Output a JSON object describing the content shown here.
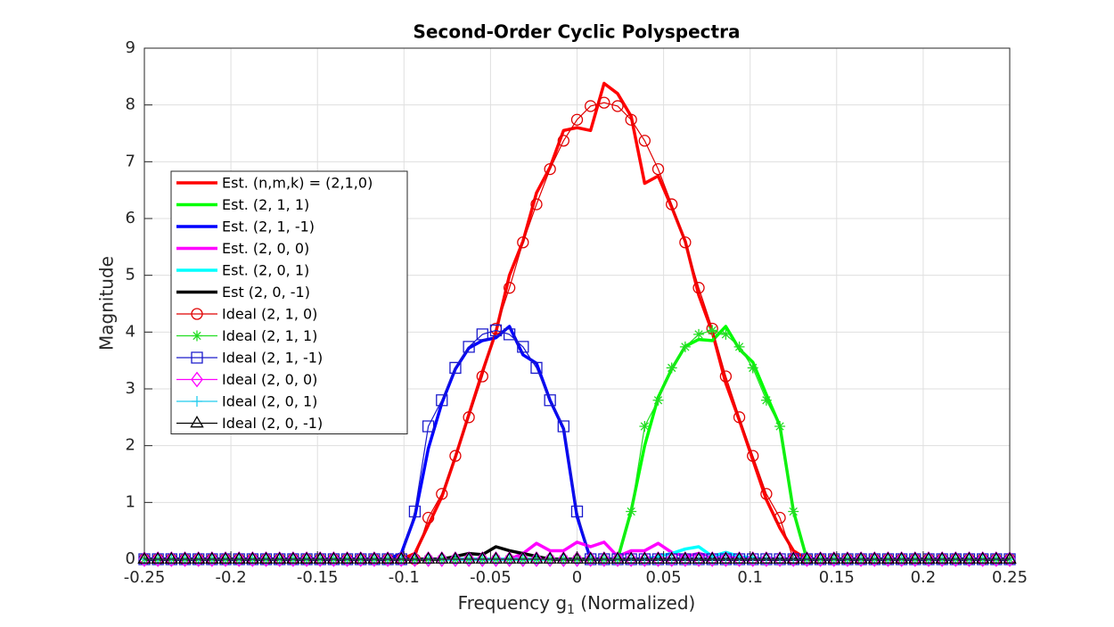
{
  "chart_data": {
    "type": "line",
    "title": "Second-Order Cyclic Polyspectra",
    "xlabel": [
      "Frequency g",
      "1",
      " (Normalized)"
    ],
    "ylabel": "Magnitude",
    "xlim": [
      -0.25,
      0.25
    ],
    "ylim": [
      0,
      9
    ],
    "xticks": [
      -0.25,
      -0.2,
      -0.15,
      -0.1,
      -0.05,
      0,
      0.05,
      0.1,
      0.15,
      0.2,
      0.25
    ],
    "yticks": [
      0,
      1,
      2,
      3,
      4,
      5,
      6,
      7,
      8,
      9
    ],
    "grid": true,
    "legend": "west",
    "x": [
      -0.25,
      -0.2421875,
      -0.234375,
      -0.2265625,
      -0.21875,
      -0.2109375,
      -0.203125,
      -0.1953125,
      -0.1875,
      -0.1796875,
      -0.171875,
      -0.1640625,
      -0.15625,
      -0.1484375,
      -0.140625,
      -0.1328125,
      -0.125,
      -0.1171875,
      -0.109375,
      -0.1015625,
      -0.09375,
      -0.0859375,
      -0.078125,
      -0.0703125,
      -0.0625,
      -0.0546875,
      -0.046875,
      -0.0390625,
      -0.03125,
      -0.0234375,
      -0.015625,
      -0.0078125,
      0,
      0.0078125,
      0.015625,
      0.0234375,
      0.03125,
      0.0390625,
      0.046875,
      0.0546875,
      0.0625,
      0.0703125,
      0.078125,
      0.0859375,
      0.09375,
      0.1015625,
      0.109375,
      0.1171875,
      0.125,
      0.1328125,
      0.140625,
      0.1484375,
      0.15625,
      0.1640625,
      0.171875,
      0.1796875,
      0.1875,
      0.1953125,
      0.203125,
      0.2109375,
      0.21875,
      0.2265625,
      0.234375,
      0.2421875,
      0.25
    ],
    "series": [
      {
        "name": "Est. (n,m,k) = (2,1,0)",
        "color": "#ff0000",
        "width": 3.5,
        "marker": "none",
        "values": [
          0,
          0,
          0,
          0,
          0,
          0,
          0,
          0,
          0,
          0,
          0,
          0,
          0,
          0,
          0,
          0,
          0,
          0,
          0,
          0,
          0.1,
          0.6,
          1.1,
          1.8,
          2.55,
          3.3,
          4.0,
          5.0,
          5.6,
          6.45,
          6.9,
          7.55,
          7.6,
          7.55,
          8.38,
          8.2,
          7.8,
          6.62,
          6.75,
          6.2,
          5.6,
          4.65,
          4.0,
          3.1,
          2.45,
          1.75,
          1.05,
          0.55,
          0.15,
          0,
          0,
          0,
          0,
          0,
          0,
          0,
          0,
          0,
          0,
          0,
          0,
          0,
          0,
          0,
          0
        ]
      },
      {
        "name": "Est. (2, 1, 1)",
        "color": "#00ff00",
        "width": 3.5,
        "marker": "none",
        "values": [
          0,
          0,
          0,
          0,
          0,
          0,
          0,
          0,
          0,
          0,
          0,
          0,
          0,
          0,
          0,
          0,
          0,
          0,
          0,
          0,
          0,
          0,
          0,
          0,
          0,
          0,
          0,
          0,
          0,
          0,
          0,
          0,
          0,
          0,
          0,
          0,
          0.85,
          2.0,
          2.85,
          3.35,
          3.75,
          3.87,
          3.85,
          4.1,
          3.7,
          3.47,
          2.9,
          2.35,
          0.85,
          0,
          0,
          0,
          0,
          0,
          0,
          0,
          0,
          0,
          0,
          0,
          0,
          0,
          0,
          0,
          0
        ]
      },
      {
        "name": "Est. (2, 1, -1)",
        "color": "#0000ff",
        "width": 3.5,
        "marker": "none",
        "values": [
          0,
          0,
          0,
          0,
          0,
          0,
          0,
          0,
          0,
          0,
          0,
          0,
          0,
          0,
          0,
          0,
          0,
          0,
          0,
          0.1,
          0.75,
          1.95,
          2.75,
          3.35,
          3.72,
          3.85,
          3.9,
          4.1,
          3.6,
          3.45,
          2.8,
          2.3,
          0.75,
          0,
          0,
          0,
          0,
          0,
          0,
          0,
          0,
          0,
          0,
          0,
          0,
          0,
          0,
          0,
          0,
          0,
          0,
          0,
          0,
          0,
          0,
          0,
          0,
          0,
          0,
          0,
          0,
          0,
          0,
          0,
          0
        ]
      },
      {
        "name": "Est. (2, 0, 0)",
        "color": "#ff00ff",
        "width": 3.5,
        "marker": "none",
        "values": [
          0,
          0,
          0,
          0,
          0,
          0,
          0,
          0,
          0,
          0,
          0,
          0,
          0,
          0,
          0,
          0,
          0,
          0,
          0,
          0,
          0,
          0,
          0,
          0,
          0,
          0,
          0,
          0,
          0.1,
          0.28,
          0.15,
          0.15,
          0.3,
          0.22,
          0.3,
          0.05,
          0.15,
          0.15,
          0.28,
          0.12,
          0.05,
          0.1,
          0.05,
          0.08,
          0.02,
          0,
          0,
          0,
          0,
          0,
          0,
          0,
          0,
          0,
          0,
          0,
          0,
          0,
          0,
          0,
          0,
          0,
          0,
          0,
          0
        ]
      },
      {
        "name": "Est. (2, 0, 1)",
        "color": "#00ffff",
        "width": 3.5,
        "marker": "none",
        "values": [
          0,
          0,
          0,
          0,
          0,
          0,
          0,
          0,
          0,
          0,
          0,
          0,
          0,
          0,
          0,
          0,
          0,
          0,
          0,
          0,
          0,
          0,
          0,
          0,
          0,
          0,
          0,
          0,
          0,
          0,
          0,
          0,
          0,
          0,
          0,
          0,
          0,
          0,
          0.05,
          0.1,
          0.18,
          0.22,
          0.05,
          0.12,
          0.05,
          0.02,
          0,
          0,
          0,
          0,
          0,
          0,
          0,
          0,
          0,
          0,
          0,
          0,
          0,
          0,
          0,
          0,
          0,
          0,
          0
        ]
      },
      {
        "name": "Est (2, 0, -1)",
        "color": "#000000",
        "width": 3.5,
        "marker": "none",
        "values": [
          0,
          0,
          0,
          0,
          0,
          0,
          0,
          0,
          0,
          0,
          0,
          0,
          0,
          0,
          0,
          0,
          0,
          0,
          0,
          0,
          0,
          0,
          0,
          0.05,
          0.1,
          0.08,
          0.22,
          0.15,
          0.1,
          0.05,
          0,
          0,
          0,
          0,
          0,
          0,
          0,
          0,
          0,
          0,
          0,
          0,
          0,
          0,
          0,
          0,
          0,
          0,
          0,
          0,
          0,
          0,
          0,
          0,
          0,
          0,
          0,
          0,
          0,
          0,
          0,
          0,
          0,
          0,
          0
        ]
      },
      {
        "name": "Ideal (2, 1, 0)",
        "color": "#e00000",
        "width": 1.2,
        "marker": "circle",
        "values": [
          0,
          0,
          0,
          0,
          0,
          0,
          0,
          0,
          0,
          0,
          0,
          0,
          0,
          0,
          0,
          0,
          0,
          0,
          0,
          0,
          0,
          0.73,
          1.15,
          1.82,
          2.5,
          3.22,
          4.06,
          4.78,
          5.58,
          6.25,
          6.87,
          7.37,
          7.74,
          7.98,
          8.04,
          7.98,
          7.74,
          7.37,
          6.87,
          6.25,
          5.58,
          4.78,
          4.06,
          3.22,
          2.5,
          1.82,
          1.15,
          0.73,
          0,
          0,
          0,
          0,
          0,
          0,
          0,
          0,
          0,
          0,
          0,
          0,
          0,
          0,
          0,
          0,
          0
        ]
      },
      {
        "name": "Ideal (2, 1, 1)",
        "color": "#22dd22",
        "width": 1.2,
        "marker": "asterisk",
        "values": [
          0,
          0,
          0,
          0,
          0,
          0,
          0,
          0,
          0,
          0,
          0,
          0,
          0,
          0,
          0,
          0,
          0,
          0,
          0,
          0,
          0,
          0,
          0,
          0,
          0,
          0,
          0,
          0,
          0,
          0,
          0,
          0,
          0,
          0,
          0,
          0,
          0.84,
          2.34,
          2.8,
          3.37,
          3.74,
          3.96,
          4.03,
          3.96,
          3.74,
          3.37,
          2.8,
          2.34,
          0.84,
          0,
          0,
          0,
          0,
          0,
          0,
          0,
          0,
          0,
          0,
          0,
          0,
          0,
          0,
          0,
          0
        ]
      },
      {
        "name": "Ideal (2, 1, -1)",
        "color": "#1a1acc",
        "width": 1.2,
        "marker": "square",
        "values": [
          0,
          0,
          0,
          0,
          0,
          0,
          0,
          0,
          0,
          0,
          0,
          0,
          0,
          0,
          0,
          0,
          0,
          0,
          0,
          0,
          0.84,
          2.34,
          2.8,
          3.37,
          3.74,
          3.96,
          4.03,
          3.96,
          3.74,
          3.37,
          2.8,
          2.34,
          0.84,
          0,
          0,
          0,
          0,
          0,
          0,
          0,
          0,
          0,
          0,
          0,
          0,
          0,
          0,
          0,
          0,
          0,
          0,
          0,
          0,
          0,
          0,
          0,
          0,
          0,
          0,
          0,
          0,
          0,
          0,
          0,
          0
        ]
      },
      {
        "name": "Ideal (2, 0, 0)",
        "color": "#ff00ff",
        "width": 1.2,
        "marker": "diamond",
        "values": [
          0,
          0,
          0,
          0,
          0,
          0,
          0,
          0,
          0,
          0,
          0,
          0,
          0,
          0,
          0,
          0,
          0,
          0,
          0,
          0,
          0,
          0,
          0,
          0,
          0,
          0,
          0,
          0,
          0,
          0,
          0,
          0,
          0,
          0,
          0,
          0,
          0,
          0,
          0,
          0,
          0,
          0,
          0,
          0,
          0,
          0,
          0,
          0,
          0,
          0,
          0,
          0,
          0,
          0,
          0,
          0,
          0,
          0,
          0,
          0,
          0,
          0,
          0,
          0,
          0
        ]
      },
      {
        "name": "Ideal (2, 0, 1)",
        "color": "#22ccee",
        "width": 1.2,
        "marker": "plus",
        "values": [
          0,
          0,
          0,
          0,
          0,
          0,
          0,
          0,
          0,
          0,
          0,
          0,
          0,
          0,
          0,
          0,
          0,
          0,
          0,
          0,
          0,
          0,
          0,
          0,
          0,
          0,
          0,
          0,
          0,
          0,
          0,
          0,
          0,
          0,
          0,
          0,
          0,
          0,
          0,
          0,
          0,
          0,
          0,
          0,
          0,
          0,
          0,
          0,
          0,
          0,
          0,
          0,
          0,
          0,
          0,
          0,
          0,
          0,
          0,
          0,
          0,
          0,
          0,
          0,
          0
        ]
      },
      {
        "name": "Ideal (2, 0, -1)",
        "color": "#000000",
        "width": 1.2,
        "marker": "triangle",
        "values": [
          0,
          0,
          0,
          0,
          0,
          0,
          0,
          0,
          0,
          0,
          0,
          0,
          0,
          0,
          0,
          0,
          0,
          0,
          0,
          0,
          0,
          0,
          0,
          0,
          0,
          0,
          0,
          0,
          0,
          0,
          0,
          0,
          0,
          0,
          0,
          0,
          0,
          0,
          0,
          0,
          0,
          0,
          0,
          0,
          0,
          0,
          0,
          0,
          0,
          0,
          0,
          0,
          0,
          0,
          0,
          0,
          0,
          0,
          0,
          0,
          0,
          0,
          0,
          0,
          0
        ]
      }
    ]
  }
}
